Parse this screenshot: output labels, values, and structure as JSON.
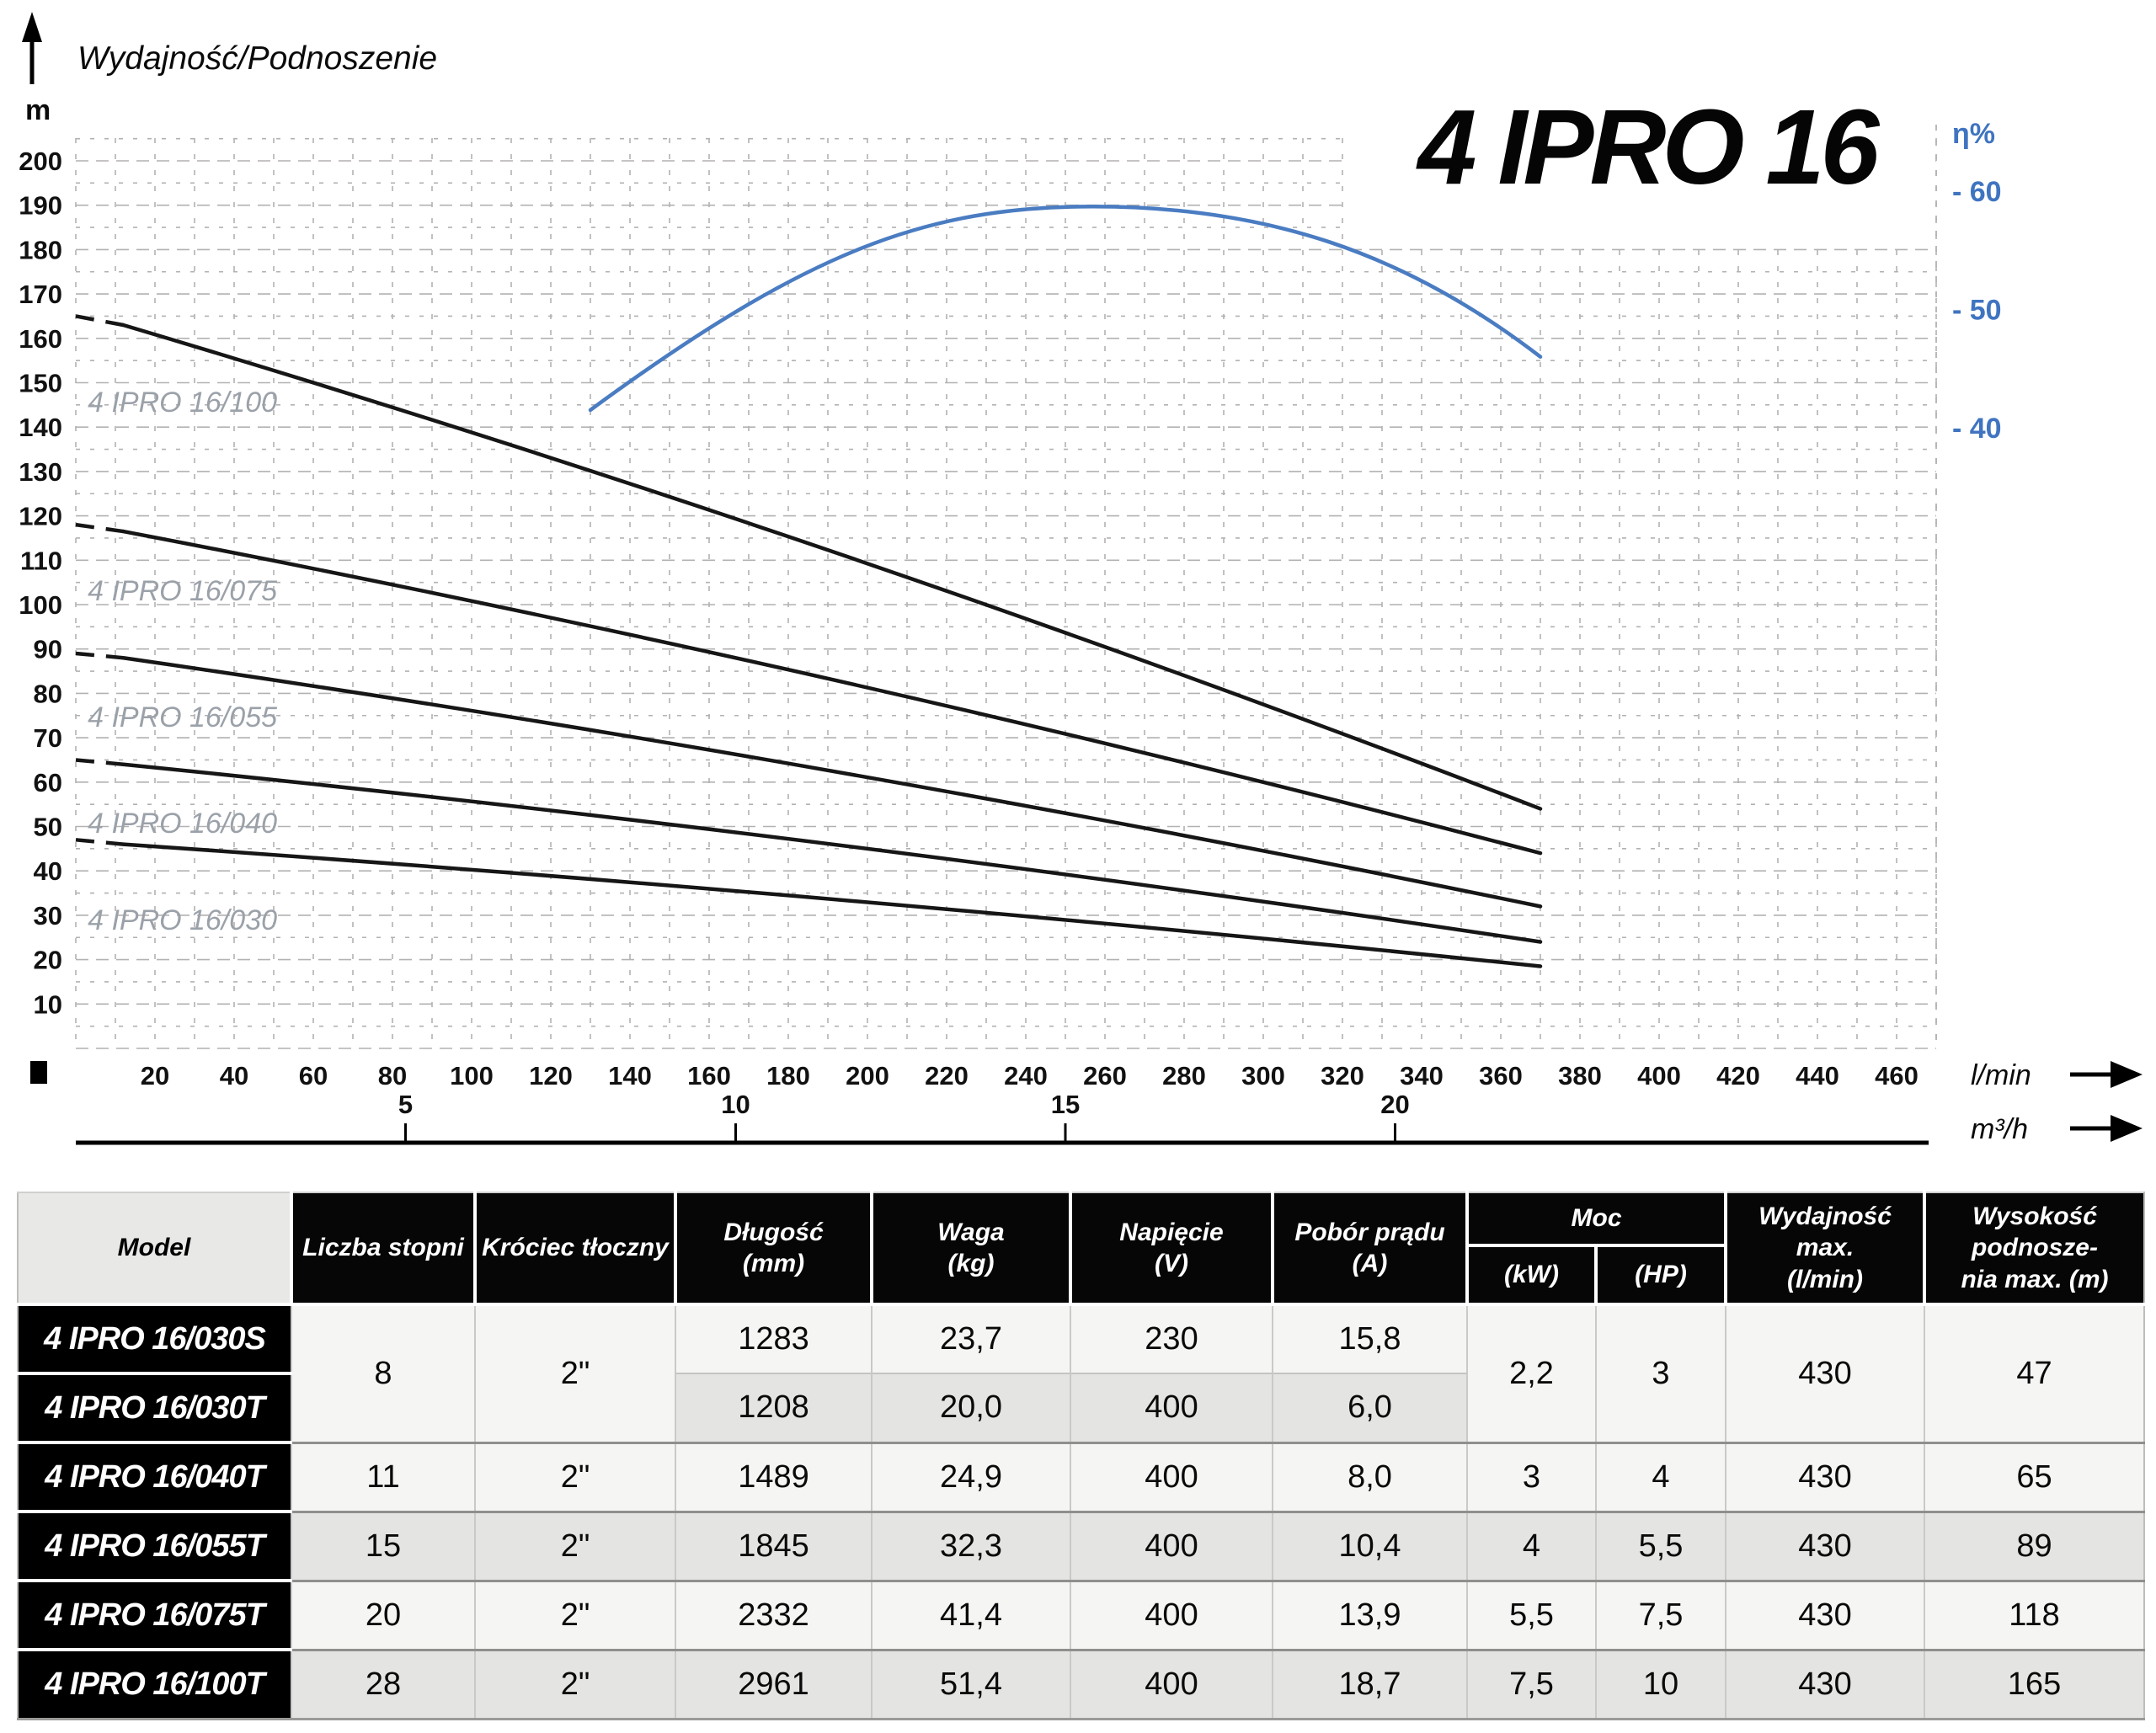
{
  "page_title": "4 IPRO 16",
  "chart_data": {
    "type": "line",
    "title": "4 IPRO 16",
    "axis_title": "Wydajność/Podnoszenie",
    "y_axis": {
      "unit": "m",
      "ticks": [
        200,
        190,
        180,
        170,
        160,
        150,
        140,
        130,
        120,
        110,
        100,
        90,
        80,
        70,
        60,
        50,
        40,
        30,
        20,
        10
      ],
      "range_m": [
        0,
        205
      ]
    },
    "x_axis": {
      "unit": "l/min",
      "ticks": [
        20,
        40,
        60,
        80,
        100,
        120,
        140,
        160,
        180,
        200,
        220,
        240,
        260,
        280,
        300,
        320,
        340,
        360,
        380,
        400,
        420,
        440,
        460
      ],
      "range_lmin": [
        0,
        470
      ],
      "secondary_unit": "m³/h",
      "secondary_ticks": [
        {
          "label": "5",
          "lmin": 83.3
        },
        {
          "label": "10",
          "lmin": 166.7
        },
        {
          "label": "15",
          "lmin": 250
        },
        {
          "label": "20",
          "lmin": 333.3
        }
      ]
    },
    "eta_axis": {
      "label": "η%",
      "ticks": [
        {
          "label": "- 60",
          "value": 60
        },
        {
          "label": "- 50",
          "value": 50
        },
        {
          "label": "- 40",
          "value": 40
        }
      ]
    },
    "head_curves": [
      {
        "label": "4 IPRO 16/100",
        "shutoff_head_m": 165,
        "dashed": [
          [
            0,
            165
          ],
          [
            12,
            163
          ]
        ],
        "solid": {
          "from": [
            12,
            163
          ],
          "ctrl": [
            191,
            115.5
          ],
          "to": [
            370,
            54
          ]
        },
        "label_pos": [
          3,
          145.7
        ]
      },
      {
        "label": "4 IPRO 16/075",
        "shutoff_head_m": 118,
        "dashed": [
          [
            0,
            118
          ],
          [
            12,
            116.5
          ]
        ],
        "solid": {
          "from": [
            12,
            116.5
          ],
          "ctrl": [
            191,
            86
          ],
          "to": [
            370,
            44
          ]
        },
        "label_pos": [
          3,
          103.2
        ]
      },
      {
        "label": "4 IPRO 16/055",
        "shutoff_head_m": 89,
        "dashed": [
          [
            0,
            89
          ],
          [
            12,
            88
          ]
        ],
        "solid": {
          "from": [
            12,
            88
          ],
          "ctrl": [
            191,
            65
          ],
          "to": [
            370,
            32
          ]
        },
        "label_pos": [
          3,
          74.8
        ]
      },
      {
        "label": "4 IPRO 16/040",
        "shutoff_head_m": 65,
        "dashed": [
          [
            0,
            65
          ],
          [
            12,
            64
          ]
        ],
        "solid": {
          "from": [
            12,
            64
          ],
          "ctrl": [
            191,
            48
          ],
          "to": [
            370,
            24
          ]
        },
        "label_pos": [
          3,
          50.9
        ]
      },
      {
        "label": "4 IPRO 16/030",
        "shutoff_head_m": 47,
        "dashed": [
          [
            0,
            47
          ],
          [
            12,
            46
          ]
        ],
        "solid": {
          "from": [
            12,
            46
          ],
          "ctrl": [
            191,
            35
          ],
          "to": [
            370,
            18.5
          ]
        },
        "label_pos": [
          3,
          29.0
        ]
      }
    ],
    "efficiency_curve": {
      "start": [
        130,
        41.5
      ],
      "segments": [
        {
          "c1": [
            185,
            55
          ],
          "c2": [
            215,
            58.7
          ],
          "to": [
            257,
            58.7
          ]
        },
        {
          "c1": [
            300,
            58.7
          ],
          "c2": [
            335,
            55
          ],
          "to": [
            370,
            46
          ]
        }
      ]
    },
    "colors": {
      "curve": "#161616",
      "efficiency": "#4a7cc2",
      "grid": "#b3b1b1",
      "curve_label": "#9ba1a9",
      "eta_text": "#3f74c0"
    }
  },
  "table": {
    "columns": [
      {
        "label": "Model",
        "kind": "model"
      },
      {
        "label": "Liczba stopni"
      },
      {
        "label": "Króciec tłoczny"
      },
      {
        "label": "Długość",
        "unit": "(mm)"
      },
      {
        "label": "Waga",
        "unit": "(kg)"
      },
      {
        "label": "Napięcie",
        "unit": "(V)"
      },
      {
        "label": "Pobór prądu",
        "unit": "(A)"
      },
      {
        "label": "Moc",
        "children": [
          {
            "label": "(kW)"
          },
          {
            "label": "(HP)"
          }
        ]
      },
      {
        "label": "Wydajność max.",
        "unit": "(l/min)"
      },
      {
        "label": "Wysokość podnosze-",
        "unit": "nia max. (m)"
      }
    ],
    "rows": [
      {
        "model": "4 IPRO 16/030S",
        "shade": false,
        "cells": [
          {
            "v": "8",
            "rs": 2
          },
          {
            "v": "2\"",
            "rs": 2
          },
          {
            "v": "1283"
          },
          {
            "v": "23,7"
          },
          {
            "v": "230"
          },
          {
            "v": "15,8"
          },
          {
            "v": "2,2",
            "rs": 2
          },
          {
            "v": "3",
            "rs": 2
          },
          {
            "v": "430",
            "rs": 2
          },
          {
            "v": "47",
            "rs": 2
          }
        ]
      },
      {
        "model": "4 IPRO 16/030T",
        "shade": true,
        "sub": true,
        "cells": [
          {
            "v": "1208"
          },
          {
            "v": "20,0"
          },
          {
            "v": "400"
          },
          {
            "v": "6,0"
          }
        ]
      },
      {
        "model": "4 IPRO 16/040T",
        "shade": false,
        "cells": [
          {
            "v": "11"
          },
          {
            "v": "2\""
          },
          {
            "v": "1489"
          },
          {
            "v": "24,9"
          },
          {
            "v": "400"
          },
          {
            "v": "8,0"
          },
          {
            "v": "3"
          },
          {
            "v": "4"
          },
          {
            "v": "430"
          },
          {
            "v": "65"
          }
        ]
      },
      {
        "model": "4 IPRO 16/055T",
        "shade": true,
        "cells": [
          {
            "v": "15"
          },
          {
            "v": "2\""
          },
          {
            "v": "1845"
          },
          {
            "v": "32,3"
          },
          {
            "v": "400"
          },
          {
            "v": "10,4"
          },
          {
            "v": "4"
          },
          {
            "v": "5,5"
          },
          {
            "v": "430"
          },
          {
            "v": "89"
          }
        ]
      },
      {
        "model": "4 IPRO 16/075T",
        "shade": false,
        "cells": [
          {
            "v": "20"
          },
          {
            "v": "2\""
          },
          {
            "v": "2332"
          },
          {
            "v": "41,4"
          },
          {
            "v": "400"
          },
          {
            "v": "13,9"
          },
          {
            "v": "5,5"
          },
          {
            "v": "7,5"
          },
          {
            "v": "430"
          },
          {
            "v": "118"
          }
        ]
      },
      {
        "model": "4 IPRO 16/100T",
        "shade": true,
        "cells": [
          {
            "v": "28"
          },
          {
            "v": "2\""
          },
          {
            "v": "2961"
          },
          {
            "v": "51,4"
          },
          {
            "v": "400"
          },
          {
            "v": "18,7"
          },
          {
            "v": "7,5"
          },
          {
            "v": "10"
          },
          {
            "v": "430"
          },
          {
            "v": "165"
          }
        ]
      }
    ]
  }
}
